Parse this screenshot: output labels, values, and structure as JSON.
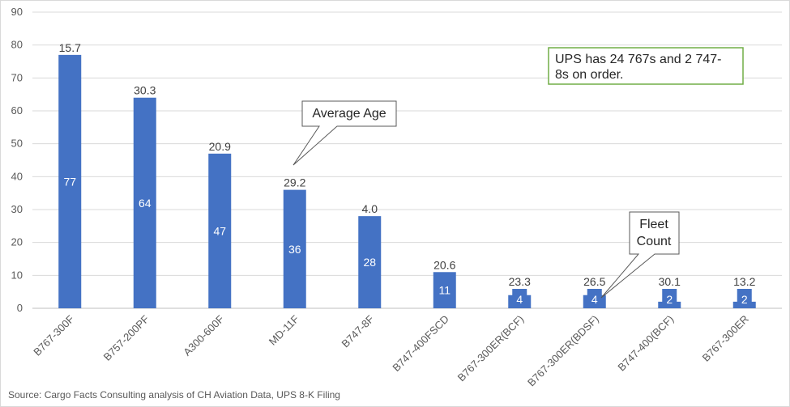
{
  "chart_data": {
    "type": "bar",
    "categories": [
      "B767-300F",
      "B757-200PF",
      "A300-600F",
      "MD-11F",
      "B747-8F",
      "B747-400FSCD",
      "B767-300ER(BCF)",
      "B767-300ER(BDSF)",
      "B747-400(BCF)",
      "B767-300ER"
    ],
    "series": [
      {
        "values": [
          77,
          64,
          47,
          36,
          28,
          11,
          4,
          4,
          2,
          2
        ]
      }
    ],
    "average_age_labels": [
      "15.7",
      "30.3",
      "20.9",
      "29.2",
      "4.0",
      "20.6",
      "23.3",
      "26.5",
      "30.1",
      "13.2"
    ],
    "fleet_count_labels": [
      "77",
      "64",
      "47",
      "36",
      "28",
      "11",
      "4",
      "4",
      "2",
      "2"
    ],
    "ylim": [
      0,
      90
    ],
    "yticks": [
      "0",
      "10",
      "20",
      "30",
      "40",
      "50",
      "60",
      "70",
      "80",
      "90"
    ],
    "grid": true,
    "legend": "none",
    "bar_color": "#4472C4",
    "grid_color": "#D9D9D9",
    "note_border_color": "#70AD47"
  },
  "annotations": {
    "average_age": "Average Age",
    "fleet_count_line1": "Fleet",
    "fleet_count_line2": "Count",
    "note_line1": "UPS has 24 767s and 2 747-",
    "note_line2": "8s on order."
  },
  "source": "Source: Cargo Facts Consulting analysis of CH Aviation Data, UPS 8-K Filing"
}
